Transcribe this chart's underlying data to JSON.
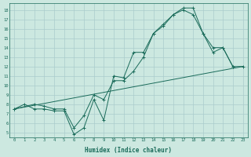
{
  "xlabel": "Humidex (Indice chaleur)",
  "bg_color": "#cce8e0",
  "grid_color": "#aacccc",
  "line_color": "#1a6b5a",
  "xlim": [
    -0.5,
    23.5
  ],
  "ylim": [
    4.5,
    18.7
  ],
  "xticks": [
    0,
    1,
    2,
    3,
    4,
    5,
    6,
    7,
    8,
    9,
    10,
    11,
    12,
    13,
    14,
    15,
    16,
    17,
    18,
    19,
    20,
    21,
    22,
    23
  ],
  "yticks": [
    5,
    6,
    7,
    8,
    9,
    10,
    11,
    12,
    13,
    14,
    15,
    16,
    17,
    18
  ],
  "line1_x": [
    0,
    1,
    2,
    3,
    4,
    5,
    6,
    7,
    8,
    9,
    10,
    11,
    12,
    13,
    14,
    15,
    16,
    17,
    18,
    19,
    20,
    21,
    22
  ],
  "line1_y": [
    7.5,
    8.0,
    7.5,
    7.5,
    7.3,
    7.3,
    4.8,
    5.5,
    8.5,
    6.3,
    11.0,
    10.8,
    13.5,
    13.5,
    15.5,
    16.3,
    17.5,
    18.2,
    18.2,
    15.5,
    13.5,
    14.0,
    12.0
  ],
  "line2_x": [
    0,
    2,
    3,
    4,
    5,
    6,
    7,
    8,
    9,
    10,
    11,
    12,
    13,
    14,
    15,
    16,
    17,
    18,
    19,
    20,
    21,
    22,
    23
  ],
  "line2_y": [
    7.5,
    8.0,
    7.8,
    7.5,
    7.5,
    5.5,
    6.8,
    9.0,
    8.5,
    10.5,
    10.5,
    11.5,
    13.0,
    15.5,
    16.5,
    17.5,
    18.0,
    17.5,
    15.5,
    14.0,
    14.0,
    12.0,
    12.0
  ],
  "line3_x": [
    0,
    23
  ],
  "line3_y": [
    7.5,
    12.0
  ]
}
